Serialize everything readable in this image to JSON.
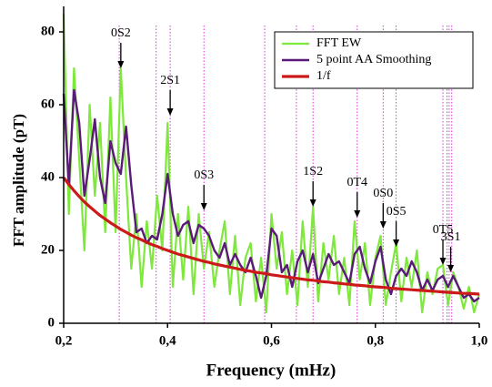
{
  "chart_data": {
    "type": "line",
    "xlabel": "Frequency (mHz)",
    "ylabel": "FFT amplitude  (pT)",
    "xlim": [
      0.2,
      1.0
    ],
    "ylim": [
      0,
      87
    ],
    "xticks": [
      {
        "value": 0.2,
        "label": "0,2"
      },
      {
        "value": 0.4,
        "label": "0,4"
      },
      {
        "value": 0.6,
        "label": "0,6"
      },
      {
        "value": 0.8,
        "label": "0,8"
      },
      {
        "value": 1.0,
        "label": "1,0"
      }
    ],
    "yticks": [
      0,
      20,
      40,
      60,
      80
    ],
    "legend_position": "upper right",
    "x": [
      0.2,
      0.21,
      0.22,
      0.23,
      0.24,
      0.25,
      0.26,
      0.27,
      0.28,
      0.29,
      0.3,
      0.31,
      0.32,
      0.33,
      0.34,
      0.35,
      0.36,
      0.37,
      0.38,
      0.39,
      0.4,
      0.41,
      0.42,
      0.43,
      0.44,
      0.45,
      0.46,
      0.47,
      0.48,
      0.49,
      0.5,
      0.51,
      0.52,
      0.53,
      0.54,
      0.55,
      0.56,
      0.57,
      0.58,
      0.59,
      0.6,
      0.61,
      0.62,
      0.63,
      0.64,
      0.65,
      0.66,
      0.67,
      0.68,
      0.69,
      0.7,
      0.71,
      0.72,
      0.73,
      0.74,
      0.75,
      0.76,
      0.77,
      0.78,
      0.79,
      0.8,
      0.81,
      0.82,
      0.83,
      0.84,
      0.85,
      0.86,
      0.87,
      0.88,
      0.89,
      0.9,
      0.91,
      0.92,
      0.93,
      0.94,
      0.95,
      0.96,
      0.97,
      0.98,
      0.99,
      1.0
    ],
    "series": [
      {
        "name": "FFT EW",
        "color": "#7ee83c",
        "width": 2.2,
        "values": [
          85,
          30,
          70,
          45,
          20,
          60,
          35,
          55,
          25,
          62,
          25,
          70,
          40,
          15,
          30,
          10,
          28,
          15,
          35,
          20,
          55,
          10,
          30,
          12,
          32,
          8,
          30,
          15,
          25,
          10,
          20,
          28,
          8,
          24,
          5,
          18,
          22,
          6,
          18,
          3,
          30,
          15,
          25,
          8,
          20,
          5,
          28,
          10,
          32,
          6,
          22,
          12,
          24,
          8,
          18,
          5,
          28,
          12,
          22,
          5,
          18,
          24,
          5,
          14,
          22,
          6,
          18,
          10,
          20,
          3,
          14,
          8,
          15,
          16,
          5,
          14,
          10,
          4,
          10,
          3,
          8
        ]
      },
      {
        "name": "5 point AA Smoothing",
        "color": "#5a1a78",
        "width": 2.4,
        "values": [
          63,
          38,
          64,
          55,
          35,
          45,
          56,
          40,
          33,
          50,
          44,
          41,
          54,
          38,
          25,
          26,
          22,
          24,
          23,
          30,
          41,
          30,
          24,
          27,
          28,
          22,
          27,
          26,
          24,
          20,
          18,
          22,
          16,
          19,
          16,
          14,
          18,
          13,
          7,
          13,
          26,
          24,
          14,
          16,
          10,
          17,
          20,
          14,
          19,
          11,
          15,
          19,
          16,
          17,
          14,
          11,
          19,
          21,
          15,
          11,
          17,
          21,
          12,
          8,
          13,
          15,
          13,
          17,
          14,
          9,
          12,
          9,
          12,
          13,
          10,
          13,
          10,
          7,
          8,
          6,
          7
        ]
      },
      {
        "name": "1/f",
        "color": "#cc1a1a",
        "width": 3.2,
        "values": [
          40,
          38.1,
          36.4,
          34.8,
          33.3,
          32,
          30.8,
          29.6,
          28.6,
          27.6,
          26.7,
          25.8,
          25,
          24.2,
          23.5,
          22.9,
          22.2,
          21.6,
          21.1,
          20.5,
          20,
          19.5,
          19,
          18.6,
          18.2,
          17.8,
          17.4,
          17,
          16.7,
          16.3,
          16,
          15.7,
          15.4,
          15.1,
          14.8,
          14.5,
          14.3,
          14,
          13.8,
          13.6,
          13.3,
          13.1,
          12.9,
          12.7,
          12.5,
          12.3,
          12.1,
          11.9,
          11.8,
          11.6,
          11.4,
          11.3,
          11.1,
          11,
          10.8,
          10.7,
          10.5,
          10.4,
          10.3,
          10.1,
          10,
          9.9,
          9.8,
          9.6,
          9.5,
          9.4,
          9.3,
          9.2,
          9.1,
          9,
          8.9,
          8.8,
          8.7,
          8.6,
          8.5,
          8.4,
          8.3,
          8.2,
          8.2,
          8.1,
          8
        ]
      }
    ],
    "mode_lines": {
      "color": "#dd33dd",
      "x": [
        0.307,
        0.378,
        0.405,
        0.47,
        0.587,
        0.648,
        0.68,
        0.765,
        0.815,
        0.84,
        0.93,
        0.938,
        0.942,
        0.947
      ]
    },
    "annotations": [
      {
        "label": "0S2",
        "x": 0.31,
        "y": 70
      },
      {
        "label": "2S1",
        "x": 0.405,
        "y": 57
      },
      {
        "label": "0S3",
        "x": 0.47,
        "y": 31
      },
      {
        "label": "1S2",
        "x": 0.68,
        "y": 32
      },
      {
        "label": "0T4",
        "x": 0.765,
        "y": 29
      },
      {
        "label": "0S0",
        "x": 0.815,
        "y": 26
      },
      {
        "label": "0S5",
        "x": 0.84,
        "y": 21
      },
      {
        "label": "0T5",
        "x": 0.93,
        "y": 16
      },
      {
        "label": "3S1",
        "x": 0.945,
        "y": 14
      }
    ]
  }
}
